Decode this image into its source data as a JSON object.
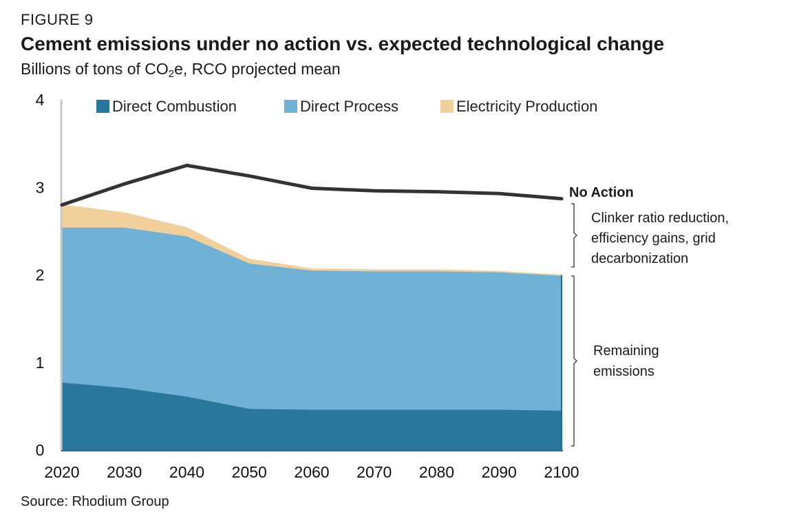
{
  "header": {
    "figure_label": "FIGURE 9",
    "title": "Cement emissions under no action vs. expected technological change",
    "subtitle_prefix": "Billions of tons of CO",
    "subtitle_sub": "2",
    "subtitle_suffix": "e, RCO projected mean"
  },
  "source": "Source: Rhodium Group",
  "colors": {
    "direct_combustion": "#2a779e",
    "direct_process": "#70b1d6",
    "electricity_production": "#f1d09b",
    "no_action": "#333333"
  },
  "chart_data": {
    "type": "area",
    "x": [
      2020,
      2030,
      2040,
      2050,
      2060,
      2070,
      2080,
      2090,
      2100
    ],
    "ylim": [
      0,
      4
    ],
    "yticks": [
      0,
      1,
      2,
      3,
      4
    ],
    "xticks": [
      2020,
      2030,
      2040,
      2050,
      2060,
      2070,
      2080,
      2090,
      2100
    ],
    "legend_position": "top",
    "grid": false,
    "stacked": true,
    "series": [
      {
        "name": "Direct Combustion",
        "values": [
          0.77,
          0.71,
          0.61,
          0.47,
          0.46,
          0.46,
          0.46,
          0.46,
          0.45
        ]
      },
      {
        "name": "Direct Process",
        "values": [
          1.77,
          1.83,
          1.83,
          1.66,
          1.59,
          1.58,
          1.58,
          1.57,
          1.54
        ]
      },
      {
        "name": "Electricity Production",
        "values": [
          0.26,
          0.17,
          0.1,
          0.05,
          0.02,
          0.02,
          0.02,
          0.01,
          0.01
        ]
      }
    ],
    "line_series": {
      "name": "No Action",
      "values": [
        2.8,
        3.04,
        3.25,
        3.13,
        2.99,
        2.96,
        2.95,
        2.93,
        2.87
      ]
    },
    "annotations": {
      "no_action_label": "No Action",
      "gap_label": [
        "Clinker ratio reduction,",
        "efficiency gains, grid",
        "decarbonization"
      ],
      "remaining_label": [
        "Remaining",
        "emissions"
      ]
    }
  }
}
